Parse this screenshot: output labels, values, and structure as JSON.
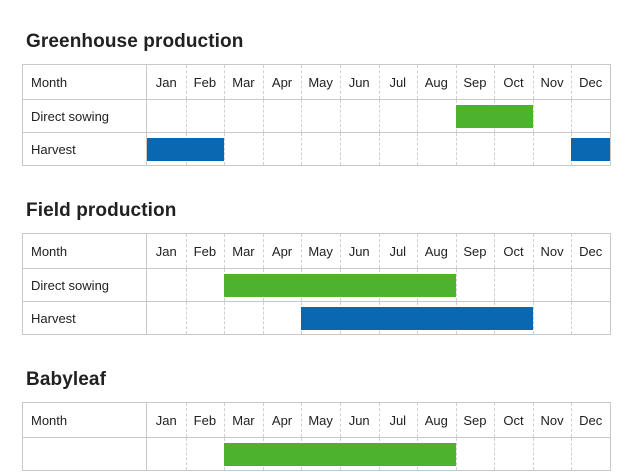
{
  "page": {
    "background_color": "#ffffff",
    "text_color": "#212121",
    "border_color": "#c8c8c8",
    "dashed_gridline_color": "#d0d0d0",
    "bar_colors": {
      "sowing_green": "#4db22c",
      "harvest_blue": "#0a67b1"
    }
  },
  "months": [
    "Jan",
    "Feb",
    "Mar",
    "Apr",
    "May",
    "Jun",
    "Jul",
    "Aug",
    "Sep",
    "Oct",
    "Nov",
    "Dec"
  ],
  "chart_data": [
    {
      "type": "table",
      "subtype": "gantt-calendar",
      "title": "Greenhouse production",
      "first_column_header": "Month",
      "columns": [
        "Jan",
        "Feb",
        "Mar",
        "Apr",
        "May",
        "Jun",
        "Jul",
        "Aug",
        "Sep",
        "Oct",
        "Nov",
        "Dec"
      ],
      "rows": [
        {
          "label": "Direct sowing",
          "bars": [
            {
              "start": "Sep",
              "end": "Oct",
              "color_key": "sowing_green",
              "color": "#4db22c"
            }
          ]
        },
        {
          "label": "Harvest",
          "bars": [
            {
              "start": "Jan",
              "end": "Feb",
              "color_key": "harvest_blue",
              "color": "#0a67b1"
            },
            {
              "start": "Dec",
              "end": "Dec",
              "color_key": "harvest_blue",
              "color": "#0a67b1"
            }
          ]
        }
      ]
    },
    {
      "type": "table",
      "subtype": "gantt-calendar",
      "title": "Field production",
      "first_column_header": "Month",
      "columns": [
        "Jan",
        "Feb",
        "Mar",
        "Apr",
        "May",
        "Jun",
        "Jul",
        "Aug",
        "Sep",
        "Oct",
        "Nov",
        "Dec"
      ],
      "rows": [
        {
          "label": "Direct sowing",
          "bars": [
            {
              "start": "Mar",
              "end": "Aug",
              "color_key": "sowing_green",
              "color": "#4db22c"
            }
          ]
        },
        {
          "label": "Harvest",
          "bars": [
            {
              "start": "May",
              "end": "Oct",
              "color_key": "harvest_blue",
              "color": "#0a67b1"
            }
          ]
        }
      ]
    },
    {
      "type": "table",
      "subtype": "gantt-calendar",
      "title": "Babyleaf",
      "first_column_header": "Month",
      "columns": [
        "Jan",
        "Feb",
        "Mar",
        "Apr",
        "May",
        "Jun",
        "Jul",
        "Aug",
        "Sep",
        "Oct",
        "Nov",
        "Dec"
      ],
      "rows": [
        {
          "label": "",
          "bars": [
            {
              "start": "Mar",
              "end": "Aug",
              "color_key": "sowing_green",
              "color": "#4db22c"
            }
          ]
        }
      ]
    }
  ]
}
